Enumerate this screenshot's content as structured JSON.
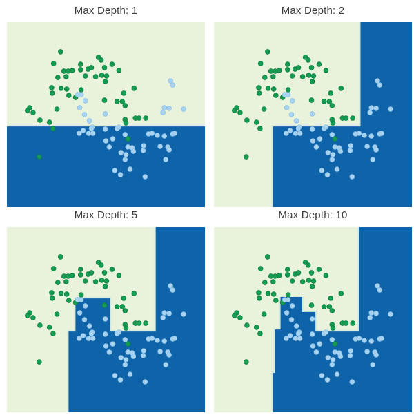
{
  "figure_title": "",
  "chart_data": {
    "type": "scatter",
    "description": "2x2 grid of decision-tree decision-boundary plots sharing one scatter dataset",
    "coord_space": "fractions of each panel plot area, x rightward, y downward",
    "colors": {
      "region_green": "#e9f3dc",
      "region_blue": "#0f63a8",
      "dot_green": "#169b52",
      "dot_green_edge": "#0d7e41",
      "dot_blue": "#a7d3f1",
      "dot_blue_edge": "#8ec2e6",
      "boundary_line": "#d2eae2",
      "title_color": "#3b3b3b",
      "page_background": "#ffffff"
    },
    "legend": "none",
    "axes": "hidden (no ticks, no labels)",
    "subplots": [
      {
        "title": "Max Depth: 1",
        "blue_polygons": [
          [
            [
              0,
              0.56
            ],
            [
              1,
              0.56
            ],
            [
              1,
              1
            ],
            [
              0,
              1
            ]
          ]
        ],
        "boundary_line": [
          [
            0,
            0.56
          ],
          [
            1,
            0.56
          ]
        ]
      },
      {
        "title": "Max Depth: 2",
        "blue_polygons": [
          [
            [
              0.737,
              0
            ],
            [
              1,
              0
            ],
            [
              1,
              1
            ],
            [
              0.295,
              1
            ],
            [
              0.295,
              0.56
            ],
            [
              0.737,
              0.56
            ]
          ]
        ],
        "boundary_line": [
          [
            0.737,
            0
          ],
          [
            0.737,
            0.56
          ],
          [
            0.295,
            0.56
          ],
          [
            0.295,
            1
          ]
        ]
      },
      {
        "title": "Max Depth: 5",
        "blue_polygons": [
          [
            [
              0.748,
              0
            ],
            [
              1,
              0
            ],
            [
              1,
              1
            ],
            [
              0.308,
              1
            ],
            [
              0.308,
              0.56
            ],
            [
              0.343,
              0.56
            ],
            [
              0.343,
              0.381
            ],
            [
              0.524,
              0.381
            ],
            [
              0.524,
              0.56
            ],
            [
              0.748,
              0.56
            ]
          ]
        ],
        "boundary_line": [
          [
            0.748,
            0
          ],
          [
            0.748,
            0.56
          ],
          [
            0.524,
            0.56
          ],
          [
            0.524,
            0.381
          ],
          [
            0.343,
            0.381
          ],
          [
            0.343,
            0.56
          ],
          [
            0.308,
            0.56
          ],
          [
            0.308,
            1
          ]
        ]
      },
      {
        "title": "Max Depth: 10",
        "blue_polygons": [
          [
            [
              0.73,
              0
            ],
            [
              1,
              0
            ],
            [
              1,
              1
            ],
            [
              0.295,
              1
            ],
            [
              0.295,
              0.784
            ],
            [
              0.305,
              0.784
            ],
            [
              0.305,
              0.549
            ],
            [
              0.333,
              0.549
            ],
            [
              0.333,
              0.373
            ],
            [
              0.449,
              0.373
            ],
            [
              0.449,
              0.455
            ],
            [
              0.516,
              0.455
            ],
            [
              0.516,
              0.56
            ],
            [
              0.73,
              0.56
            ]
          ]
        ],
        "boundary_line": [
          [
            0.73,
            0
          ],
          [
            0.73,
            0.56
          ],
          [
            0.516,
            0.56
          ],
          [
            0.516,
            0.455
          ],
          [
            0.449,
            0.455
          ],
          [
            0.449,
            0.373
          ],
          [
            0.333,
            0.373
          ],
          [
            0.333,
            0.549
          ],
          [
            0.305,
            0.549
          ],
          [
            0.305,
            0.784
          ],
          [
            0.295,
            0.784
          ],
          [
            0.295,
            1
          ]
        ]
      }
    ],
    "points": {
      "green": [
        [
          0.271,
          0.16
        ],
        [
          0.236,
          0.224
        ],
        [
          0.372,
          0.228
        ],
        [
          0.462,
          0.19
        ],
        [
          0.476,
          0.205
        ],
        [
          0.493,
          0.246
        ],
        [
          0.531,
          0.228
        ],
        [
          0.566,
          0.261
        ],
        [
          0.288,
          0.265
        ],
        [
          0.309,
          0.265
        ],
        [
          0.33,
          0.261
        ],
        [
          0.372,
          0.257
        ],
        [
          0.41,
          0.254
        ],
        [
          0.427,
          0.246
        ],
        [
          0.479,
          0.287
        ],
        [
          0.503,
          0.291
        ],
        [
          0.257,
          0.299
        ],
        [
          0.299,
          0.295
        ],
        [
          0.396,
          0.291
        ],
        [
          0.448,
          0.295
        ],
        [
          0.497,
          0.321
        ],
        [
          0.642,
          0.358
        ],
        [
          0.59,
          0.384
        ],
        [
          0.226,
          0.354
        ],
        [
          0.229,
          0.384
        ],
        [
          0.274,
          0.358
        ],
        [
          0.302,
          0.362
        ],
        [
          0.313,
          0.396
        ],
        [
          0.347,
          0.407
        ],
        [
          0.375,
          0.366
        ],
        [
          0.493,
          0.422
        ],
        [
          0.556,
          0.429
        ],
        [
          0.583,
          0.429
        ],
        [
          0.597,
          0.451
        ],
        [
          0.253,
          0.47
        ],
        [
          0.115,
          0.463
        ],
        [
          0.104,
          0.478
        ],
        [
          0.132,
          0.489
        ],
        [
          0.167,
          0.53
        ],
        [
          0.215,
          0.541
        ],
        [
          0.597,
          0.526
        ],
        [
          0.601,
          0.545
        ],
        [
          0.649,
          0.519
        ],
        [
          0.667,
          0.519
        ],
        [
          0.701,
          0.519
        ],
        [
          0.233,
          0.575
        ],
        [
          0.611,
          0.631
        ],
        [
          0.163,
          0.728
        ]
      ],
      "blue": [
        [
          0.358,
          0.392
        ],
        [
          0.375,
          0.392
        ],
        [
          0.396,
          0.425
        ],
        [
          0.368,
          0.463
        ],
        [
          0.392,
          0.5
        ],
        [
          0.417,
          0.534
        ],
        [
          0.431,
          0.567
        ],
        [
          0.497,
          0.496
        ],
        [
          0.826,
          0.317
        ],
        [
          0.837,
          0.34
        ],
        [
          0.795,
          0.463
        ],
        [
          0.819,
          0.466
        ],
        [
          0.788,
          0.489
        ],
        [
          0.892,
          0.47
        ],
        [
          0.365,
          0.601
        ],
        [
          0.385,
          0.586
        ],
        [
          0.413,
          0.601
        ],
        [
          0.434,
          0.601
        ],
        [
          0.427,
          0.575
        ],
        [
          0.497,
          0.578
        ],
        [
          0.5,
          0.642
        ],
        [
          0.517,
          0.675
        ],
        [
          0.535,
          0.631
        ],
        [
          0.556,
          0.575
        ],
        [
          0.566,
          0.567
        ],
        [
          0.597,
          0.608
        ],
        [
          0.576,
          0.705
        ],
        [
          0.601,
          0.716
        ],
        [
          0.597,
          0.743
        ],
        [
          0.611,
          0.675
        ],
        [
          0.632,
          0.679
        ],
        [
          0.639,
          0.698
        ],
        [
          0.691,
          0.668
        ],
        [
          0.688,
          0.694
        ],
        [
          0.715,
          0.604
        ],
        [
          0.733,
          0.601
        ],
        [
          0.76,
          0.612
        ],
        [
          0.795,
          0.616
        ],
        [
          0.837,
          0.604
        ],
        [
          0.847,
          0.601
        ],
        [
          0.774,
          0.672
        ],
        [
          0.813,
          0.675
        ],
        [
          0.819,
          0.69
        ],
        [
          0.802,
          0.743
        ],
        [
          0.545,
          0.802
        ],
        [
          0.573,
          0.825
        ],
        [
          0.622,
          0.795
        ],
        [
          0.698,
          0.836
        ]
      ],
      "point_radius_px": 3.4
    }
  }
}
